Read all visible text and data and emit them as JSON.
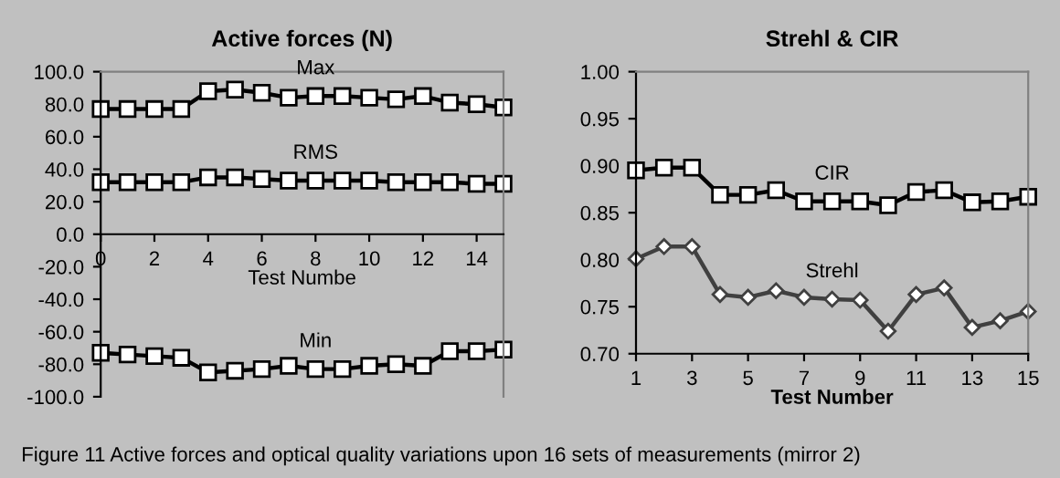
{
  "chart_data": [
    {
      "type": "line",
      "title": "Active forces (N)",
      "xlabel": "Test Numbe",
      "x": [
        0,
        1,
        2,
        3,
        4,
        5,
        6,
        7,
        8,
        9,
        10,
        11,
        12,
        13,
        14,
        15
      ],
      "xlim": [
        0,
        15
      ],
      "xticks": [
        0,
        2,
        4,
        6,
        8,
        10,
        12,
        14
      ],
      "ylim": [
        -100,
        100
      ],
      "yticks": [
        {
          "value": -100,
          "label": "-100.0"
        },
        {
          "value": -80,
          "label": "-80.0"
        },
        {
          "value": -60,
          "label": "-60.0"
        },
        {
          "value": -40,
          "label": "-40.0"
        },
        {
          "value": -20,
          "label": "-20.0"
        },
        {
          "value": 0,
          "label": "0.0"
        },
        {
          "value": 20,
          "label": "20.0"
        },
        {
          "value": 40,
          "label": "40.0"
        },
        {
          "value": 60,
          "label": "60.0"
        },
        {
          "value": 80,
          "label": "80.0"
        },
        {
          "value": 100,
          "label": "100.0"
        }
      ],
      "grid": false,
      "marker": "square",
      "series": [
        {
          "name": "Max",
          "color": "#000000",
          "values": [
            77,
            77,
            77,
            77,
            88,
            89,
            87,
            84,
            85,
            85,
            84,
            83,
            85,
            81,
            80,
            78
          ]
        },
        {
          "name": "RMS",
          "color": "#000000",
          "values": [
            32,
            32,
            32,
            32,
            35,
            35,
            34,
            33,
            33,
            33,
            33,
            32,
            32,
            32,
            31,
            31
          ]
        },
        {
          "name": "Min",
          "color": "#000000",
          "values": [
            -73,
            -74,
            -75,
            -76,
            -85,
            -84,
            -83,
            -81,
            -83,
            -83,
            -81,
            -80,
            -81,
            -72,
            -72,
            -71
          ]
        }
      ]
    },
    {
      "type": "line",
      "title": "Strehl & CIR",
      "xlabel": "Test Number",
      "x": [
        1,
        2,
        3,
        4,
        5,
        6,
        7,
        8,
        9,
        10,
        11,
        12,
        13,
        14,
        15
      ],
      "xlim": [
        1,
        15
      ],
      "xticks": [
        1,
        3,
        5,
        7,
        9,
        11,
        13,
        15
      ],
      "ylim": [
        0.7,
        1.0
      ],
      "yticks": [
        {
          "value": 0.7,
          "label": "0.70"
        },
        {
          "value": 0.75,
          "label": "0.75"
        },
        {
          "value": 0.8,
          "label": "0.80"
        },
        {
          "value": 0.85,
          "label": "0.85"
        },
        {
          "value": 0.9,
          "label": "0.90"
        },
        {
          "value": 0.95,
          "label": "0.95"
        },
        {
          "value": 1.0,
          "label": "1.00"
        }
      ],
      "grid": false,
      "series": [
        {
          "name": "CIR",
          "color": "#000000",
          "marker": "square",
          "values": [
            0.895,
            0.898,
            0.898,
            0.869,
            0.869,
            0.874,
            0.862,
            0.862,
            0.862,
            0.858,
            0.872,
            0.874,
            0.861,
            0.862,
            0.867
          ]
        },
        {
          "name": "Strehl",
          "color": "#404040",
          "marker": "diamond",
          "values": [
            0.801,
            0.814,
            0.814,
            0.763,
            0.76,
            0.767,
            0.76,
            0.758,
            0.757,
            0.724,
            0.763,
            0.77,
            0.728,
            0.735,
            0.745
          ]
        }
      ]
    },
    {
      "type": "other",
      "annotations": [
        "Figure 11 Active forces and optical quality variations upon 16 sets of measurements (mirror 2)"
      ]
    }
  ]
}
